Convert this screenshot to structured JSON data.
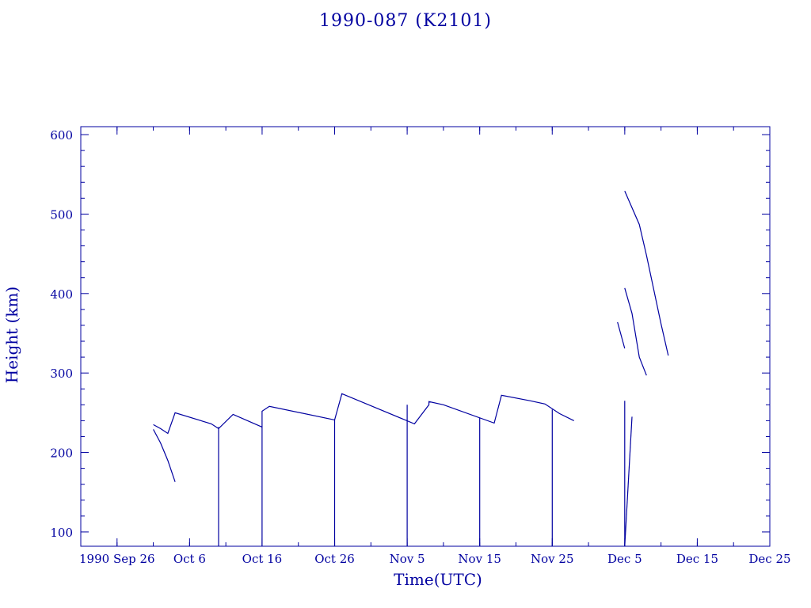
{
  "chart_data": {
    "type": "line",
    "title": "1990-087 (K2101)",
    "xlabel": "Time(UTC)",
    "ylabel": "Height (km)",
    "xlim": [
      "1990-09-21",
      "1990-12-25"
    ],
    "ylim": [
      82,
      610
    ],
    "x_ticks": [
      {
        "date": "1990-09-26",
        "label": "1990 Sep 26"
      },
      {
        "date": "1990-10-06",
        "label": "Oct  6"
      },
      {
        "date": "1990-10-16",
        "label": "Oct 16"
      },
      {
        "date": "1990-10-26",
        "label": "Oct 26"
      },
      {
        "date": "1990-11-05",
        "label": "Nov  5"
      },
      {
        "date": "1990-11-15",
        "label": "Nov 15"
      },
      {
        "date": "1990-11-25",
        "label": "Nov 25"
      },
      {
        "date": "1990-12-05",
        "label": "Dec  5"
      },
      {
        "date": "1990-12-15",
        "label": "Dec 15"
      },
      {
        "date": "1990-12-25",
        "label": "Dec 25"
      }
    ],
    "y_ticks": [
      100,
      200,
      300,
      400,
      500,
      600
    ],
    "grid": false,
    "color": "#0000a0",
    "series": [
      {
        "x": [
          "1990-10-01",
          "1990-10-02",
          "1990-10-03",
          "1990-10-04",
          "1990-10-09",
          "1990-10-10",
          "1990-10-12",
          "1990-10-16",
          "1990-10-16",
          "1990-10-17",
          "1990-10-26",
          "1990-10-27",
          "1990-11-06",
          "1990-11-08",
          "1990-11-08",
          "1990-11-10",
          "1990-11-17",
          "1990-11-18",
          "1990-11-22",
          "1990-11-24",
          "1990-11-26",
          "1990-11-28"
        ],
        "y": [
          235,
          230,
          224,
          250,
          236,
          230,
          248,
          232,
          252,
          258,
          241,
          274,
          236,
          260,
          264,
          260,
          237,
          272,
          265,
          261,
          249,
          240
        ]
      },
      {
        "x": [
          "1990-10-01",
          "1990-10-02",
          "1990-10-03",
          "1990-10-04"
        ],
        "y": [
          229,
          212,
          190,
          163
        ]
      },
      {
        "x": [
          "1990-10-10",
          "1990-10-10"
        ],
        "y": [
          82,
          232
        ]
      },
      {
        "x": [
          "1990-10-16",
          "1990-10-16"
        ],
        "y": [
          82,
          233
        ]
      },
      {
        "x": [
          "1990-10-26",
          "1990-10-26"
        ],
        "y": [
          82,
          241
        ]
      },
      {
        "x": [
          "1990-11-05",
          "1990-11-05"
        ],
        "y": [
          82,
          260
        ]
      },
      {
        "x": [
          "1990-11-15",
          "1990-11-15"
        ],
        "y": [
          82,
          244
        ]
      },
      {
        "x": [
          "1990-11-25",
          "1990-11-25"
        ],
        "y": [
          82,
          254
        ]
      },
      {
        "x": [
          "1990-12-05",
          "1990-12-05"
        ],
        "y": [
          82,
          265
        ]
      },
      {
        "x": [
          "1990-12-05",
          "1990-12-06"
        ],
        "y": [
          82,
          245
        ]
      },
      {
        "x": [
          "1990-12-04",
          "1990-12-05"
        ],
        "y": [
          364,
          331
        ]
      },
      {
        "x": [
          "1990-12-05",
          "1990-12-06",
          "1990-12-07",
          "1990-12-08"
        ],
        "y": [
          407,
          375,
          320,
          297
        ]
      },
      {
        "x": [
          "1990-12-05",
          "1990-12-07",
          "1990-12-08",
          "1990-12-10",
          "1990-12-11"
        ],
        "y": [
          529,
          487,
          448,
          362,
          322
        ]
      }
    ]
  }
}
